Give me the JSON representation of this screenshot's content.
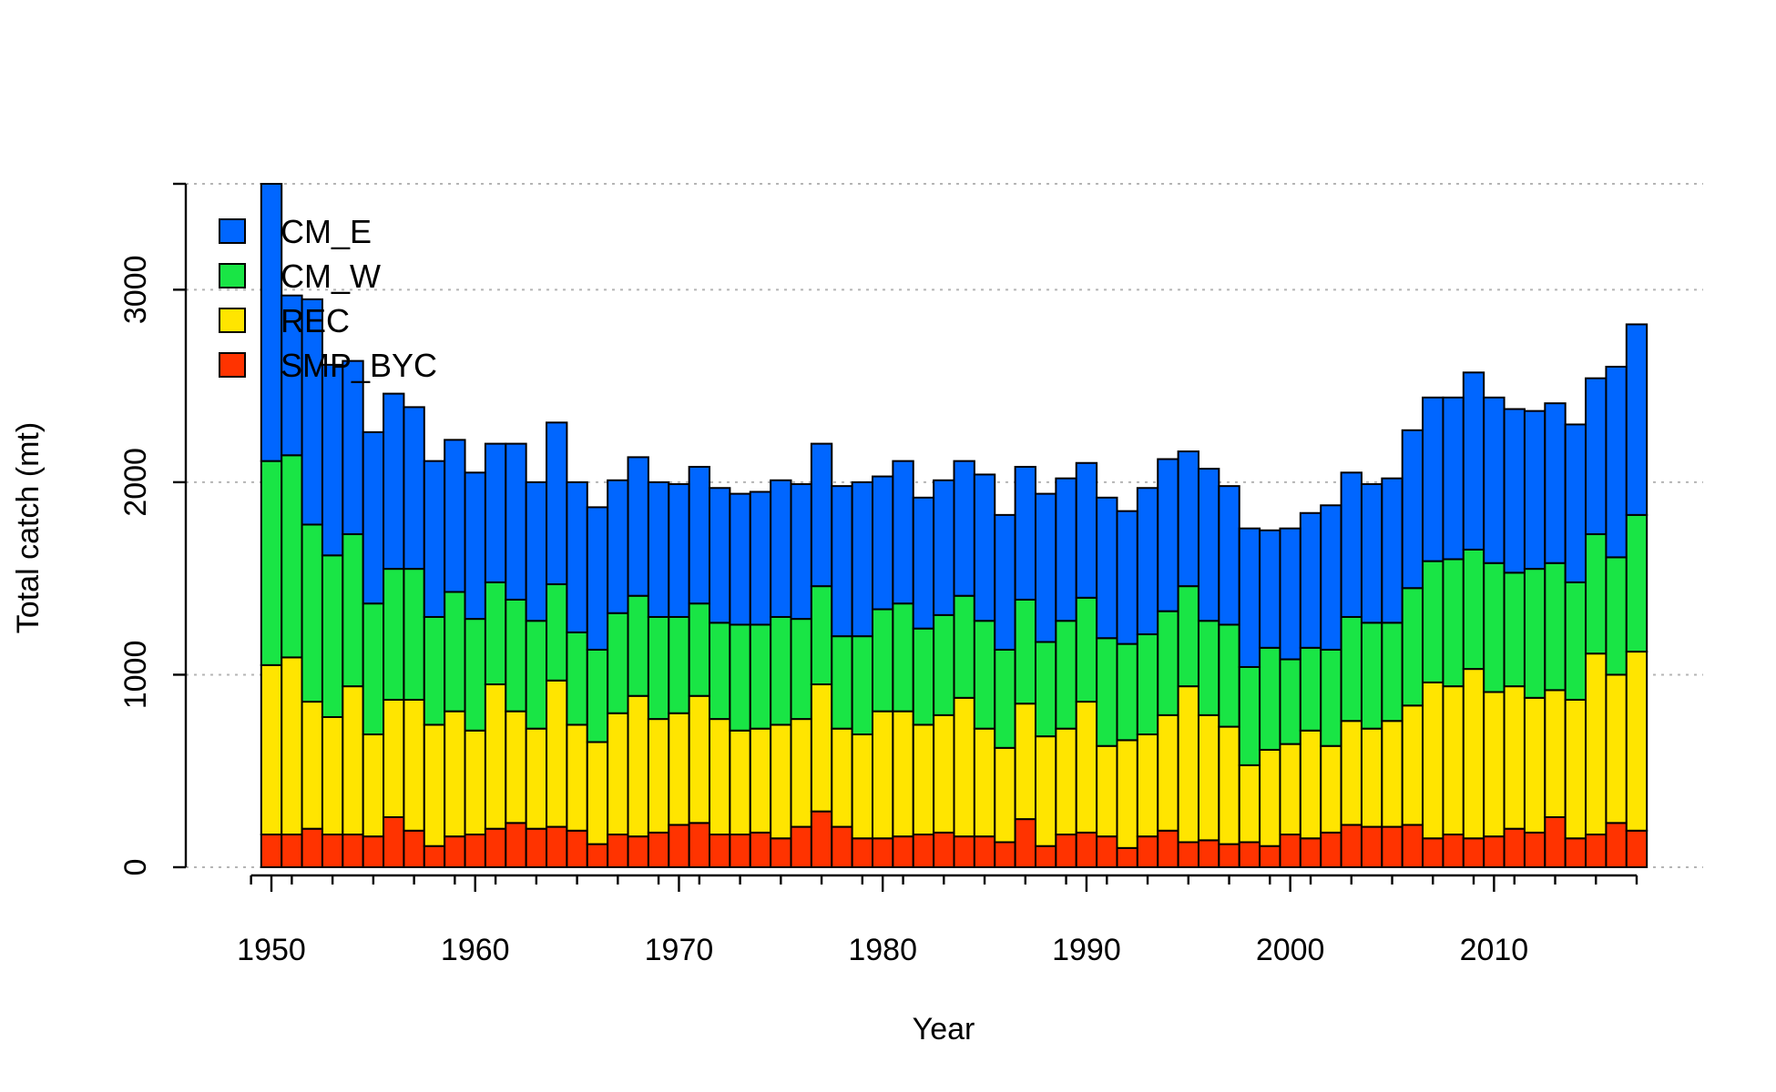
{
  "chart_data": {
    "type": "bar",
    "stacked": true,
    "title": "",
    "xlabel": "Year",
    "ylabel": "Total catch (mt)",
    "xlim": [
      1949,
      2017
    ],
    "ylim": [
      0,
      3550
    ],
    "x_ticks": [
      1950,
      1960,
      1970,
      1980,
      1990,
      2000,
      2010
    ],
    "x_tick_labels": [
      "1950",
      "1960",
      "1970",
      "1980",
      "1990",
      "2000",
      "2010"
    ],
    "y_ticks": [
      0,
      1000,
      2000,
      3000
    ],
    "y_tick_labels": [
      "0",
      "1000",
      "2000",
      "3000"
    ],
    "grid": {
      "horizontal": true,
      "values": [
        0,
        1000,
        2000,
        3000,
        3550
      ],
      "style": "dotted"
    },
    "legend": {
      "position": "top-left"
    },
    "categories": [
      1950,
      1951,
      1952,
      1953,
      1954,
      1955,
      1956,
      1957,
      1958,
      1959,
      1960,
      1961,
      1962,
      1963,
      1964,
      1965,
      1966,
      1967,
      1968,
      1969,
      1970,
      1971,
      1972,
      1973,
      1974,
      1975,
      1976,
      1977,
      1978,
      1979,
      1980,
      1981,
      1982,
      1983,
      1984,
      1985,
      1986,
      1987,
      1988,
      1989,
      1990,
      1991,
      1992,
      1993,
      1994,
      1995,
      1996,
      1997,
      1998,
      1999,
      2000,
      2001,
      2002,
      2003,
      2004,
      2005,
      2006,
      2007,
      2008,
      2009,
      2010,
      2011,
      2012,
      2013,
      2014,
      2015,
      2016,
      2017
    ],
    "series": [
      {
        "name": "SMP_BYC",
        "color": "#ff3300",
        "values": [
          170,
          170,
          200,
          170,
          170,
          160,
          260,
          190,
          110,
          160,
          170,
          200,
          230,
          200,
          210,
          190,
          120,
          170,
          160,
          180,
          220,
          230,
          170,
          170,
          180,
          150,
          210,
          290,
          210,
          150,
          150,
          160,
          170,
          180,
          160,
          160,
          130,
          250,
          110,
          170,
          180,
          160,
          100,
          160,
          190,
          130,
          140,
          120,
          130,
          110,
          170,
          150,
          180,
          220,
          210,
          210,
          220,
          150,
          170,
          150,
          160,
          200,
          180,
          260,
          150,
          170,
          230,
          190
        ]
      },
      {
        "name": "REC",
        "color": "#ffe500",
        "values": [
          880,
          920,
          660,
          610,
          770,
          530,
          610,
          680,
          630,
          650,
          540,
          750,
          580,
          520,
          760,
          550,
          530,
          630,
          730,
          590,
          580,
          660,
          600,
          540,
          540,
          590,
          560,
          660,
          510,
          540,
          660,
          650,
          570,
          610,
          720,
          560,
          490,
          600,
          570,
          550,
          680,
          470,
          560,
          530,
          600,
          810,
          650,
          610,
          400,
          500,
          470,
          560,
          450,
          540,
          510,
          550,
          620,
          810,
          770,
          880,
          750,
          740,
          700,
          660,
          720,
          940,
          770,
          930
        ]
      },
      {
        "name": "CM_W",
        "color": "#19e545",
        "values": [
          1060,
          1050,
          920,
          840,
          790,
          680,
          680,
          680,
          560,
          620,
          580,
          530,
          580,
          560,
          500,
          480,
          480,
          520,
          520,
          530,
          500,
          480,
          500,
          550,
          540,
          560,
          520,
          510,
          480,
          510,
          530,
          560,
          500,
          520,
          530,
          560,
          510,
          540,
          490,
          560,
          540,
          560,
          500,
          520,
          540,
          520,
          490,
          530,
          510,
          530,
          440,
          430,
          500,
          540,
          550,
          510,
          610,
          630,
          660,
          620,
          670,
          590,
          670,
          660,
          610,
          620,
          610,
          710
        ]
      },
      {
        "name": "CM_E",
        "color": "#0066ff",
        "values": [
          1440,
          830,
          1170,
          990,
          900,
          890,
          910,
          840,
          810,
          790,
          760,
          720,
          810,
          720,
          840,
          780,
          740,
          690,
          720,
          700,
          690,
          710,
          700,
          680,
          690,
          710,
          700,
          740,
          780,
          800,
          690,
          740,
          680,
          700,
          700,
          760,
          700,
          690,
          770,
          740,
          700,
          730,
          690,
          760,
          790,
          700,
          790,
          720,
          720,
          610,
          680,
          700,
          750,
          750,
          720,
          750,
          820,
          850,
          840,
          920,
          860,
          850,
          820,
          830,
          820,
          810,
          990,
          990
        ]
      }
    ]
  }
}
